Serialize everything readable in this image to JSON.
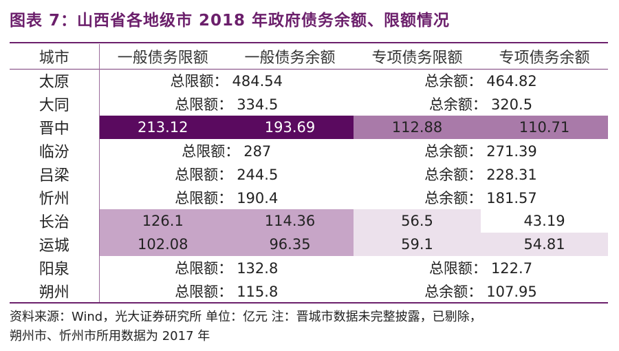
{
  "title": "图表 7：山西省各地级市 2018 年政府债务余额、限额情况",
  "header": {
    "city": "城市",
    "general_limit": "一般债务限额",
    "general_balance": "一般债务余额",
    "special_limit": "专项债务限额",
    "special_balance": "专项债务余额"
  },
  "rows": [
    {
      "city": "太原",
      "left_label": "总限额：",
      "left_value": "484.54",
      "right_label": "总余额：",
      "right_value": "464.82"
    },
    {
      "city": "大同",
      "left_label": "总限额：",
      "left_value": "334.5",
      "right_label": "总余额：",
      "right_value": "320.5"
    },
    {
      "city": "晋中",
      "gl": "213.12",
      "gb": "193.69",
      "sl": "112.88",
      "sb": "110.71"
    },
    {
      "city": "临汾",
      "left_label": "总限额：",
      "left_value": "287",
      "right_label": "总余额：",
      "right_value": "271.39"
    },
    {
      "city": "吕梁",
      "left_label": "总限额：",
      "left_value": "244.5",
      "right_label": "总余额：",
      "right_value": "228.31"
    },
    {
      "city": "忻州",
      "left_label": "总限额：",
      "left_value": "190.4",
      "right_label": "总余额：",
      "right_value": "181.57"
    },
    {
      "city": "长治",
      "gl": "126.1",
      "gb": "114.36",
      "sl": "56.5",
      "sb": "43.19"
    },
    {
      "city": "运城",
      "gl": "102.08",
      "gb": "96.35",
      "sl": "59.1",
      "sb": "54.81"
    },
    {
      "city": "阳泉",
      "left_label": "总限额：",
      "left_value": "132.8",
      "right_label": "总限额：",
      "right_value": "122.7"
    },
    {
      "city": "朔州",
      "left_label": "总限额：",
      "left_value": "115.8",
      "right_label": "总余额：",
      "right_value": "107.95"
    }
  ],
  "footer": {
    "line1": "资料来源：Wind，光大证券研究所 单位：亿元   注：晋城市数据未完整披露，已剔除，",
    "line2": "朔州市、忻州市所用数据为 2017 年"
  },
  "colors": {
    "title": "#6b1f6b",
    "dark": "#5a0a5f",
    "mid": "#a97aa9",
    "light": "#c7a5c7",
    "pale": "#ece1ec"
  }
}
